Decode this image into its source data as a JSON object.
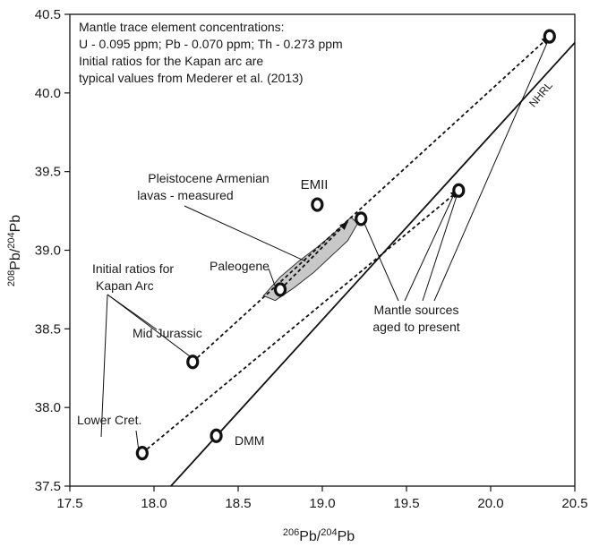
{
  "chart_data": {
    "type": "scatter",
    "xlabel": "206Pb/204Pb",
    "ylabel": "208Pb/204Pb",
    "xlim": [
      17.5,
      20.5
    ],
    "ylim": [
      37.5,
      40.5
    ],
    "xticks": [
      17.5,
      18.0,
      18.5,
      19.0,
      19.5,
      20.0,
      20.5
    ],
    "yticks": [
      37.5,
      38.0,
      38.5,
      39.0,
      39.5,
      40.0,
      40.5
    ],
    "xtick_labels": [
      "17.5",
      "18.0",
      "18.5",
      "19.0",
      "19.5",
      "20.0",
      "20.5"
    ],
    "ytick_labels": [
      "37.5",
      "38.0",
      "38.5",
      "39.0",
      "39.5",
      "40.0",
      "40.5"
    ],
    "grid": false,
    "notes": [
      "Mantle trace element concentrations:",
      "U - 0.095 ppm; Pb - 0.070 ppm; Th - 0.273 ppm",
      "Initial ratios for the Kapan arc are",
      "typical values from Mederer et al. (2013)"
    ],
    "points": [
      {
        "x": 17.93,
        "y": 37.71
      },
      {
        "x": 18.23,
        "y": 38.29
      },
      {
        "x": 18.75,
        "y": 38.75
      },
      {
        "x": 18.37,
        "y": 37.82
      },
      {
        "x": 18.97,
        "y": 39.29
      },
      {
        "x": 19.23,
        "y": 39.2
      },
      {
        "x": 19.81,
        "y": 39.38
      },
      {
        "x": 20.35,
        "y": 40.36
      }
    ],
    "arrows": [
      {
        "from": [
          17.93,
          37.71
        ],
        "to": [
          19.81,
          39.38
        ]
      },
      {
        "from": [
          18.23,
          38.29
        ],
        "to": [
          20.35,
          40.36
        ]
      },
      {
        "from": [
          18.75,
          38.75
        ],
        "to": [
          19.15,
          39.18
        ]
      }
    ],
    "nhrl": {
      "label": "NHRL",
      "from": [
        18.1,
        37.5
      ],
      "to": [
        20.5,
        40.32
      ]
    },
    "field": {
      "label_lines": [
        "Pleistocene Armenian",
        "lavas - measured"
      ],
      "outline": [
        [
          18.65,
          38.71
        ],
        [
          18.72,
          38.68
        ],
        [
          18.83,
          38.76
        ],
        [
          18.95,
          38.86
        ],
        [
          19.05,
          38.96
        ],
        [
          19.15,
          39.06
        ],
        [
          19.21,
          39.17
        ],
        [
          19.17,
          39.21
        ],
        [
          19.07,
          39.11
        ],
        [
          18.97,
          39.02
        ],
        [
          18.86,
          38.93
        ],
        [
          18.75,
          38.83
        ]
      ],
      "color": "#c8c8c8"
    },
    "labels": {
      "emii": "EMII",
      "dmm": "DMM",
      "paleogene": "Paleogene",
      "initial_ratios": [
        "Initial ratios for",
        "Kapan Arc"
      ],
      "mid_jurassic": "Mid Jurassic",
      "lower_cret": "Lower Cret.",
      "mantle_sources": [
        "Mantle sources",
        "aged to present"
      ]
    }
  }
}
